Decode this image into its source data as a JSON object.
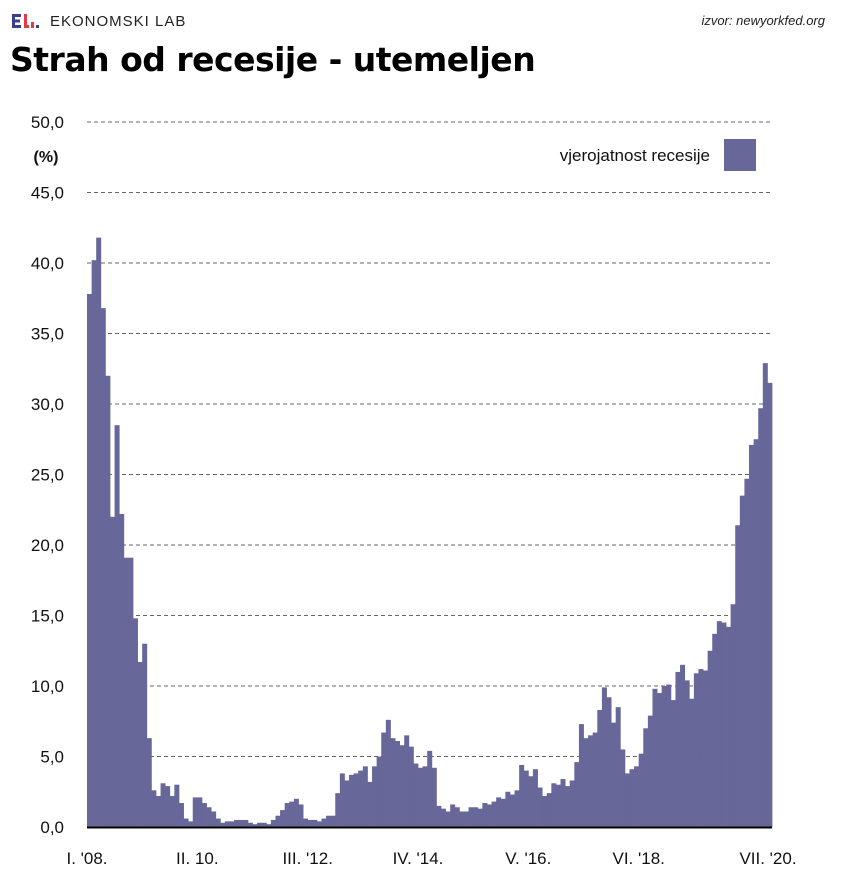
{
  "header": {
    "brand": "EKONOMSKI LAB",
    "logo_letters": "EL",
    "source": "izvor: newyorkfed.org"
  },
  "title": "Strah od recesije - utemeljen",
  "colors": {
    "bar": "#676799",
    "logo_blue": "#3b3f8f",
    "logo_red": "#e63946",
    "grid": "#333333"
  },
  "chart_data": {
    "type": "bar",
    "title": "Strah od recesije - utemeljen",
    "ylabel": "(%)",
    "xlabel": "",
    "ylim": [
      0,
      50
    ],
    "yticks": [
      "0,0",
      "5,0",
      "10,0",
      "15,0",
      "20,0",
      "25,0",
      "30,0",
      "35,0",
      "40,0",
      "45,0",
      "50,0"
    ],
    "ytick_values": [
      0,
      5,
      10,
      15,
      20,
      25,
      30,
      35,
      40,
      45,
      50
    ],
    "xtick_labels": [
      "I. '08.",
      "II. 10.",
      "III. '12.",
      "IV. '14.",
      "V. '16.",
      "VI. '18.",
      "VII. '20."
    ],
    "xtick_index": [
      0,
      24,
      48,
      72,
      96,
      120,
      144
    ],
    "grid": "horizontal dashed",
    "legend": {
      "label": "vjerojatnost recesije",
      "position": "top-right"
    },
    "series": [
      {
        "name": "vjerojatnost recesije",
        "values": [
          37.8,
          40.2,
          41.8,
          36.8,
          32.0,
          22.0,
          28.5,
          22.2,
          19.1,
          19.1,
          14.8,
          11.7,
          13.0,
          6.3,
          2.6,
          2.2,
          3.1,
          2.9,
          2.2,
          3.0,
          1.7,
          0.6,
          0.4,
          2.1,
          2.1,
          1.7,
          1.4,
          1.1,
          0.6,
          0.3,
          0.4,
          0.4,
          0.5,
          0.5,
          0.5,
          0.3,
          0.2,
          0.3,
          0.3,
          0.2,
          0.5,
          0.8,
          1.2,
          1.7,
          1.8,
          2.0,
          1.6,
          0.6,
          0.5,
          0.5,
          0.4,
          0.6,
          0.8,
          0.8,
          2.4,
          3.8,
          3.3,
          3.7,
          3.8,
          4.0,
          4.3,
          3.2,
          4.3,
          5.0,
          6.7,
          7.6,
          6.3,
          6.1,
          5.8,
          6.5,
          5.7,
          4.5,
          4.2,
          4.3,
          5.4,
          4.2,
          1.5,
          1.3,
          1.1,
          1.6,
          1.4,
          1.1,
          1.1,
          1.4,
          1.4,
          1.3,
          1.7,
          1.6,
          1.8,
          2.1,
          2.0,
          2.5,
          2.3,
          2.6,
          4.4,
          4.0,
          3.6,
          4.1,
          2.8,
          2.2,
          2.4,
          3.1,
          3.0,
          3.4,
          2.9,
          3.3,
          4.6,
          7.3,
          6.3,
          6.5,
          6.7,
          8.3,
          9.9,
          9.2,
          7.4,
          8.5,
          5.5,
          3.8,
          4.1,
          4.3,
          5.2,
          7.0,
          7.9,
          9.8,
          9.5,
          10.0,
          10.1,
          9.0,
          11.0,
          11.5,
          10.4,
          9.1,
          10.9,
          11.2,
          11.1,
          12.5,
          13.7,
          14.6,
          14.5,
          14.2,
          15.8,
          21.4,
          23.5,
          24.7,
          27.1,
          27.5,
          29.7,
          32.9,
          31.5
        ]
      }
    ]
  }
}
